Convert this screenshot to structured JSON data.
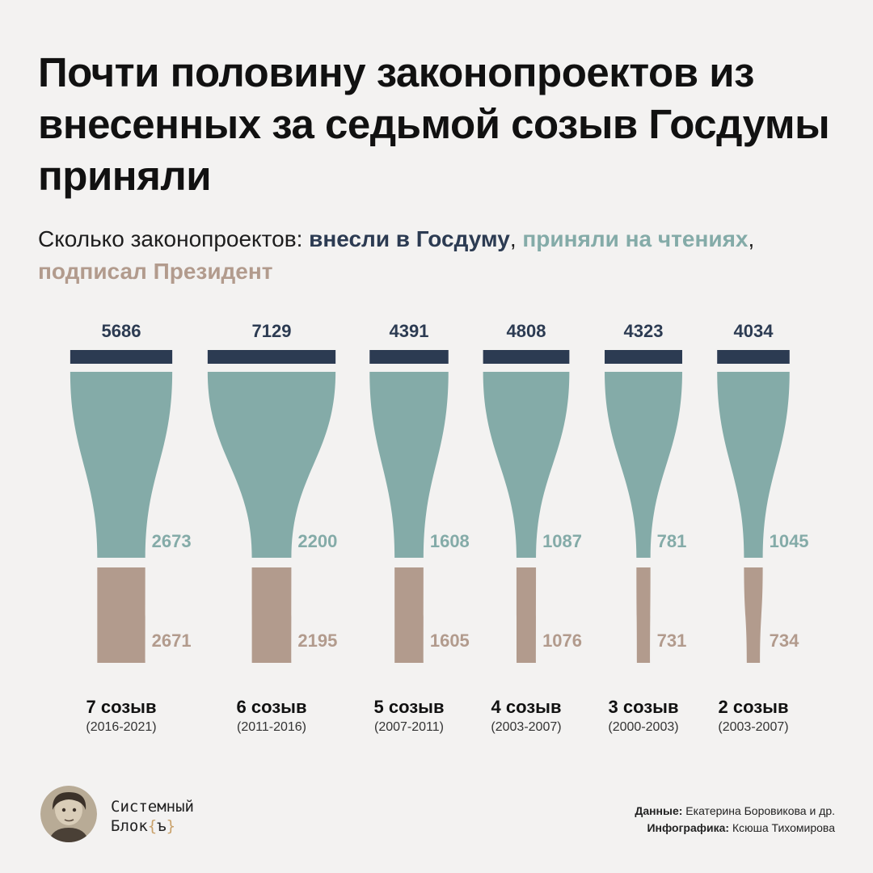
{
  "title": "Почти половину законопроектов из внесенных за седьмой созыв Госдумы приняли",
  "subtitle": {
    "lead": "Сколько законопроектов: ",
    "submitted": "внесли в Госдуму",
    "sep1": ", ",
    "adopted": "приняли на чтениях",
    "sep2": ",",
    "signed": "подписал Президент"
  },
  "colors": {
    "submitted": "#2c3b52",
    "adopted": "#84aba8",
    "signed": "#b29b8d"
  },
  "chart_data": {
    "type": "bar",
    "categories": [
      "7 созыв",
      "6 созыв",
      "5 созыв",
      "4 созыв",
      "3 созыв",
      "2 созыв"
    ],
    "years": [
      "(2016-2021)",
      "(2011-2016)",
      "(2007-2011)",
      "(2003-2007)",
      "(2000-2003)",
      "(2003-2007)"
    ],
    "series": [
      {
        "name": "внесли в Госдуму",
        "values": [
          5686,
          7129,
          4391,
          4808,
          4323,
          4034
        ]
      },
      {
        "name": "приняли на чтениях",
        "values": [
          2673,
          2200,
          1608,
          1087,
          781,
          1045
        ]
      },
      {
        "name": "подписал Президент",
        "values": [
          2671,
          2195,
          1605,
          1076,
          731,
          734
        ]
      }
    ]
  },
  "brand": {
    "line1": "Системный",
    "line2": "Блок",
    "brace_open": "{",
    "brace_mark": "ъ",
    "brace_close": "}"
  },
  "credits": {
    "data_label": "Данные:",
    "data_value": " Екатерина Боровикова и др.",
    "infographic_label": "Инфографика:",
    "infographic_value": " Ксюша Тихомирова"
  }
}
